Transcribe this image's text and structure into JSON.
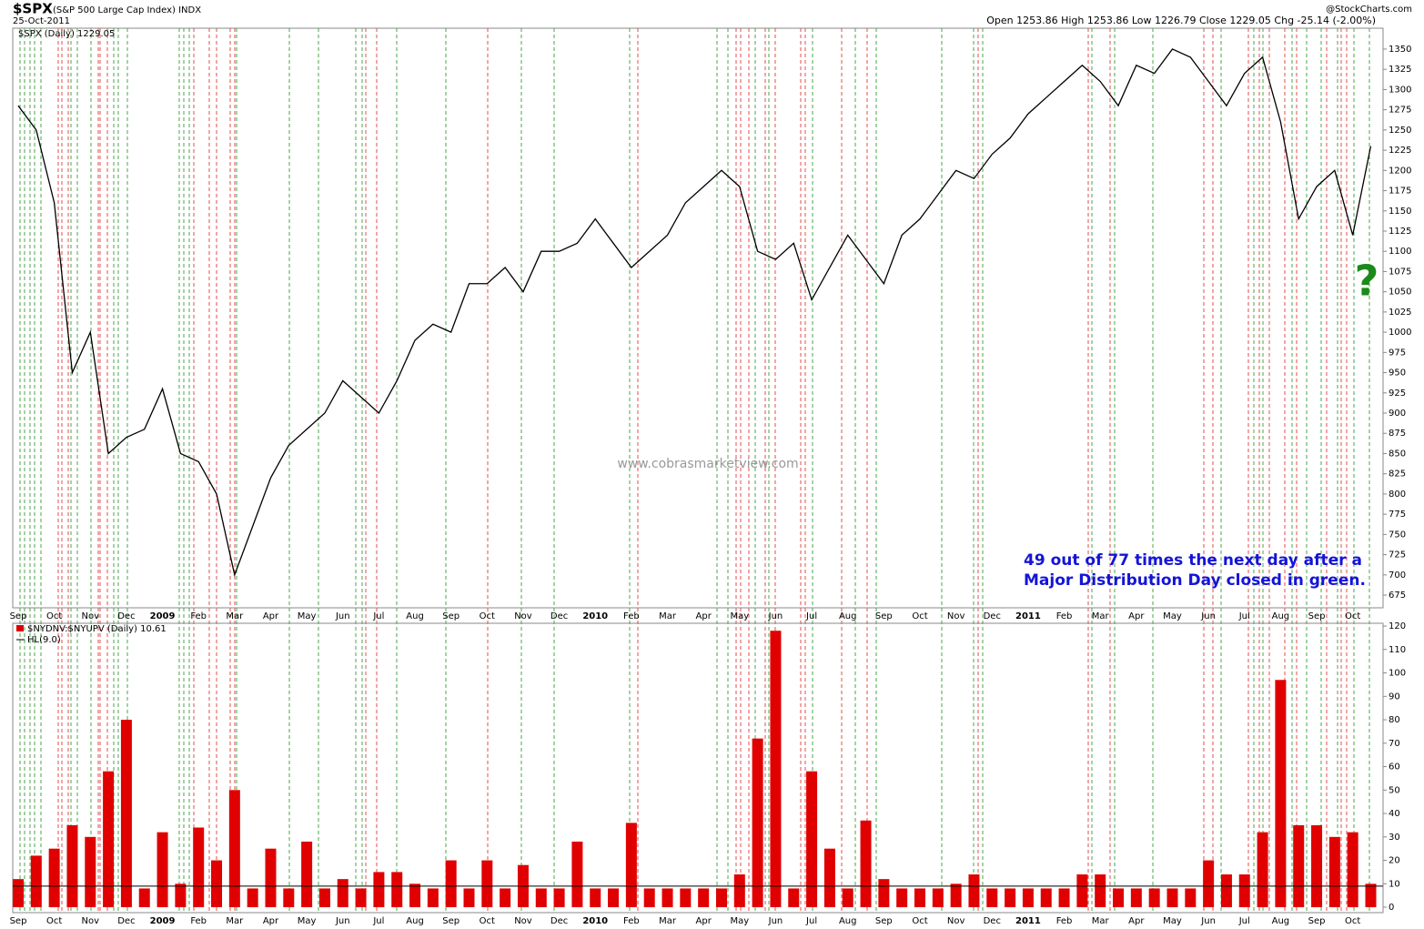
{
  "header": {
    "symbol": "$SPX",
    "name": "(S&P 500 Large Cap Index) INDX",
    "date": "25-Oct-2011",
    "source": "@StockCharts.com",
    "quote": "Open 1253.86 High 1253.86 Low 1226.79 Close 1229.05 Chg -25.14 (-2.00%)"
  },
  "watermark": "www.cobrasmarketview.com",
  "chart_data": [
    {
      "type": "line",
      "legend": "$SPX (Daily) 1229.05",
      "color": "#000000",
      "annotations": [
        "49 out of 77 times the next day after a",
        "Major Distribution Day closed in green.",
        "?"
      ],
      "categories": [
        "Sep",
        null,
        "Oct",
        null,
        "Nov",
        null,
        "Dec",
        null,
        "2009",
        null,
        "Feb",
        null,
        "Mar",
        null,
        "Apr",
        null,
        "May",
        null,
        "Jun",
        null,
        "Jul",
        null,
        "Aug",
        null,
        "Sep",
        null,
        "Oct",
        null,
        "Nov",
        null,
        "Dec",
        null,
        "2010",
        null,
        "Feb",
        null,
        "Mar",
        null,
        "Apr",
        null,
        "May",
        null,
        "Jun",
        null,
        "Jul",
        null,
        "Aug",
        null,
        "Sep",
        null,
        "Oct",
        null,
        "Nov",
        null,
        "Dec",
        null,
        "2011",
        null,
        "Feb",
        null,
        "Mar",
        null,
        "Apr",
        null,
        "May",
        null,
        "Jun",
        null,
        "Jul",
        null,
        "Aug",
        null,
        "Sep",
        null,
        "Oct",
        null
      ],
      "series": [
        {
          "name": "$SPX",
          "color": "#000000",
          "values": [
            1280,
            1250,
            1160,
            950,
            1000,
            850,
            870,
            880,
            930,
            850,
            840,
            800,
            700,
            760,
            820,
            860,
            880,
            900,
            940,
            920,
            900,
            940,
            990,
            1010,
            1000,
            1060,
            1060,
            1080,
            1050,
            1100,
            1100,
            1110,
            1140,
            1110,
            1080,
            1100,
            1120,
            1160,
            1180,
            1200,
            1180,
            1100,
            1090,
            1110,
            1040,
            1080,
            1120,
            1090,
            1060,
            1120,
            1140,
            1170,
            1200,
            1190,
            1220,
            1240,
            1270,
            1290,
            1310,
            1330,
            1310,
            1280,
            1330,
            1320,
            1350,
            1340,
            1310,
            1280,
            1320,
            1340,
            1260,
            1140,
            1180,
            1200,
            1120,
            1230
          ]
        }
      ],
      "ylim": [
        662,
        1372
      ],
      "yticks": [
        675,
        700,
        725,
        750,
        775,
        800,
        825,
        850,
        875,
        900,
        925,
        950,
        975,
        1000,
        1025,
        1050,
        1075,
        1100,
        1125,
        1150,
        1175,
        1200,
        1225,
        1250,
        1275,
        1300,
        1325,
        1350
      ]
    },
    {
      "type": "bar",
      "legend": "$NYDNV:$NYUPV (Daily) 10.61",
      "hline_label": "HL(9.0)",
      "hline": 9,
      "color": "#e00000",
      "categories": [
        "Sep",
        null,
        "Oct",
        null,
        "Nov",
        null,
        "Dec",
        null,
        "2009",
        null,
        "Feb",
        null,
        "Mar",
        null,
        "Apr",
        null,
        "May",
        null,
        "Jun",
        null,
        "Jul",
        null,
        "Aug",
        null,
        "Sep",
        null,
        "Oct",
        null,
        "Nov",
        null,
        "Dec",
        null,
        "2010",
        null,
        "Feb",
        null,
        "Mar",
        null,
        "Apr",
        null,
        "May",
        null,
        "Jun",
        null,
        "Jul",
        null,
        "Aug",
        null,
        "Sep",
        null,
        "Oct",
        null,
        "Nov",
        null,
        "Dec",
        null,
        "2011",
        null,
        "Feb",
        null,
        "Mar",
        null,
        "Apr",
        null,
        "May",
        null,
        "Jun",
        null,
        "Jul",
        null,
        "Aug",
        null,
        "Sep",
        null,
        "Oct",
        null
      ],
      "values": [
        12,
        22,
        25,
        35,
        30,
        58,
        80,
        8,
        32,
        10,
        34,
        20,
        50,
        8,
        25,
        8,
        28,
        8,
        12,
        8,
        15,
        15,
        10,
        8,
        20,
        8,
        20,
        8,
        18,
        8,
        8,
        28,
        8,
        8,
        36,
        8,
        8,
        8,
        8,
        8,
        14,
        72,
        118,
        8,
        58,
        25,
        8,
        37,
        12,
        8,
        8,
        8,
        10,
        14,
        8,
        8,
        8,
        8,
        8,
        14,
        14,
        8,
        8,
        8,
        8,
        8,
        20,
        14,
        14,
        32,
        97,
        35,
        35,
        30,
        32,
        10
      ],
      "ylim": [
        -2,
        122
      ],
      "yticks": [
        0,
        10,
        20,
        30,
        40,
        50,
        60,
        70,
        80,
        90,
        100,
        110,
        120
      ]
    }
  ]
}
